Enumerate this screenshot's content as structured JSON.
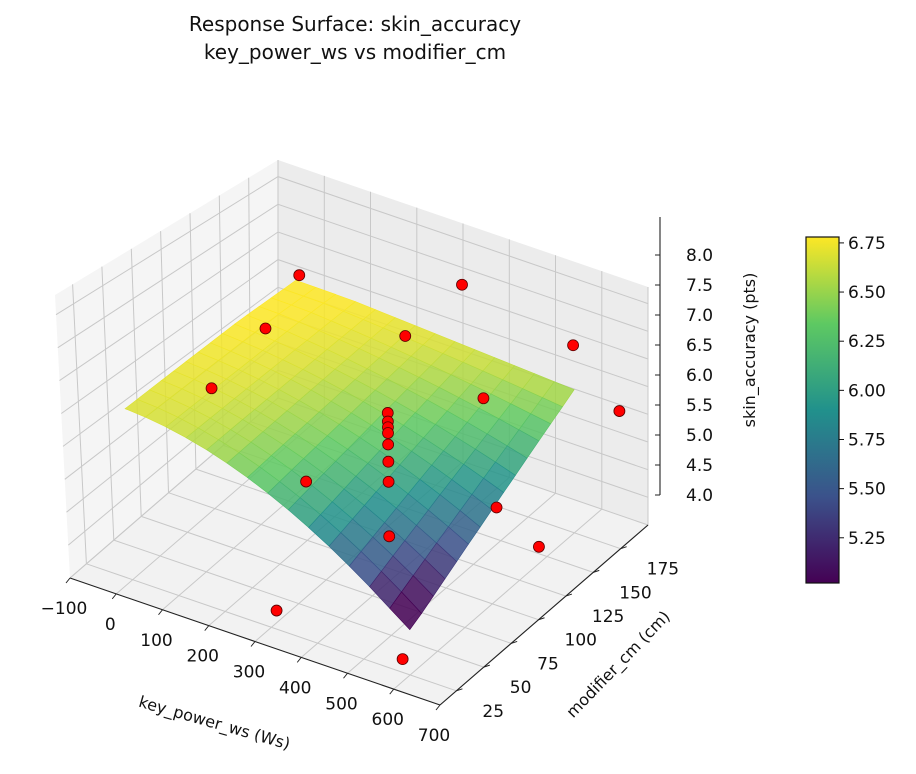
{
  "chart_data": {
    "type": "surface",
    "title_lines": [
      "Response Surface: skin_accuracy",
      "key_power_ws vs modifier_cm"
    ],
    "xlabel": "key_power_ws (Ws)",
    "ylabel": "modifier_cm (cm)",
    "zlabel": "skin_accuracy (pts)",
    "xlim": [
      -100,
      700
    ],
    "ylim": [
      10,
      200
    ],
    "zlim": [
      4.0,
      8.3
    ],
    "x_ticks": [
      "−100",
      "0",
      "100",
      "200",
      "300",
      "400",
      "500",
      "600",
      "700"
    ],
    "y_ticks": [
      "25",
      "50",
      "75",
      "100",
      "125",
      "150",
      "175"
    ],
    "z_ticks": [
      "4.0",
      "4.5",
      "5.0",
      "5.5",
      "6.0",
      "6.5",
      "7.0",
      "7.5",
      "8.0"
    ],
    "colorbar": {
      "colormap": "viridis",
      "range": [
        5.02,
        6.78
      ],
      "ticks": [
        "5.25",
        "5.50",
        "5.75",
        "6.00",
        "6.25",
        "6.50",
        "6.75"
      ]
    },
    "surface": {
      "x_range": [
        0,
        600
      ],
      "y_range": [
        25,
        175
      ],
      "fitted_min": 4.8,
      "fitted_max": 6.78
    },
    "points": [
      {
        "x": 20,
        "y": 170,
        "z": 7.0
      },
      {
        "x": 20,
        "y": 140,
        "z": 6.5
      },
      {
        "x": 0,
        "y": 100,
        "z": 6.0
      },
      {
        "x": 300,
        "y": 30,
        "z": 4.2
      },
      {
        "x": 560,
        "y": 35,
        "z": 4.0
      },
      {
        "x": 630,
        "y": 130,
        "z": 4.6
      },
      {
        "x": 650,
        "y": 195,
        "z": 6.0
      },
      {
        "x": 550,
        "y": 195,
        "z": 6.9
      },
      {
        "x": 310,
        "y": 195,
        "z": 7.3
      },
      {
        "x": 260,
        "y": 165,
        "z": 6.7
      },
      {
        "x": 440,
        "y": 160,
        "z": 6.2
      },
      {
        "x": 200,
        "y": 100,
        "z": 5.0
      },
      {
        "x": 330,
        "y": 120,
        "z": 6.25
      },
      {
        "x": 330,
        "y": 120,
        "z": 6.1
      },
      {
        "x": 330,
        "y": 120,
        "z": 6.0
      },
      {
        "x": 330,
        "y": 120,
        "z": 5.9
      },
      {
        "x": 330,
        "y": 120,
        "z": 5.7
      },
      {
        "x": 330,
        "y": 120,
        "z": 5.4
      },
      {
        "x": 330,
        "y": 120,
        "z": 5.05
      },
      {
        "x": 330,
        "y": 120,
        "z": 4.1
      },
      {
        "x": 610,
        "y": 100,
        "z": 5.75
      }
    ]
  }
}
